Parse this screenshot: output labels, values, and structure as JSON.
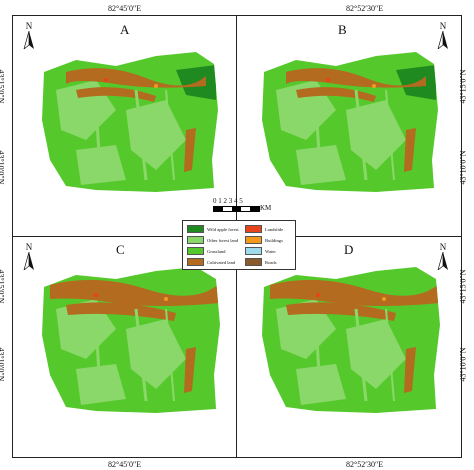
{
  "coordinates": {
    "top_lon_1": "82°45′0″E",
    "top_lon_2": "82°52′30″E",
    "bottom_lon_1": "82°45′0″E",
    "bottom_lon_2": "82°52′30″E",
    "lat_1": "43°15′0″N",
    "lat_2": "43°10′0″N"
  },
  "panels": [
    {
      "letter": "A"
    },
    {
      "letter": "B"
    },
    {
      "letter": "C"
    },
    {
      "letter": "D"
    }
  ],
  "north_label": "N",
  "scale": {
    "numbers": "0 1 2 3 4 5",
    "unit": "KM"
  },
  "legend": [
    {
      "label": "Wild apple forest",
      "color": "#1f8a1f"
    },
    {
      "label": "Landslide",
      "color": "#e8441c"
    },
    {
      "label": "Other forest land",
      "color": "#8ad86a"
    },
    {
      "label": "Buildings",
      "color": "#f39a1e"
    },
    {
      "label": "Grassland",
      "color": "#55c92b"
    },
    {
      "label": "Water",
      "color": "#9edcec"
    },
    {
      "label": "Cultivated land",
      "color": "#b36b1f"
    },
    {
      "label": "Roads",
      "color": "#8a5a2a"
    }
  ],
  "colors": {
    "grassland": "#55c92b",
    "other_forest": "#8ad86a",
    "wild_apple": "#1f8a1f",
    "cultivated": "#b36b1f",
    "buildings": "#f39a1e",
    "landslide": "#e8441c"
  }
}
